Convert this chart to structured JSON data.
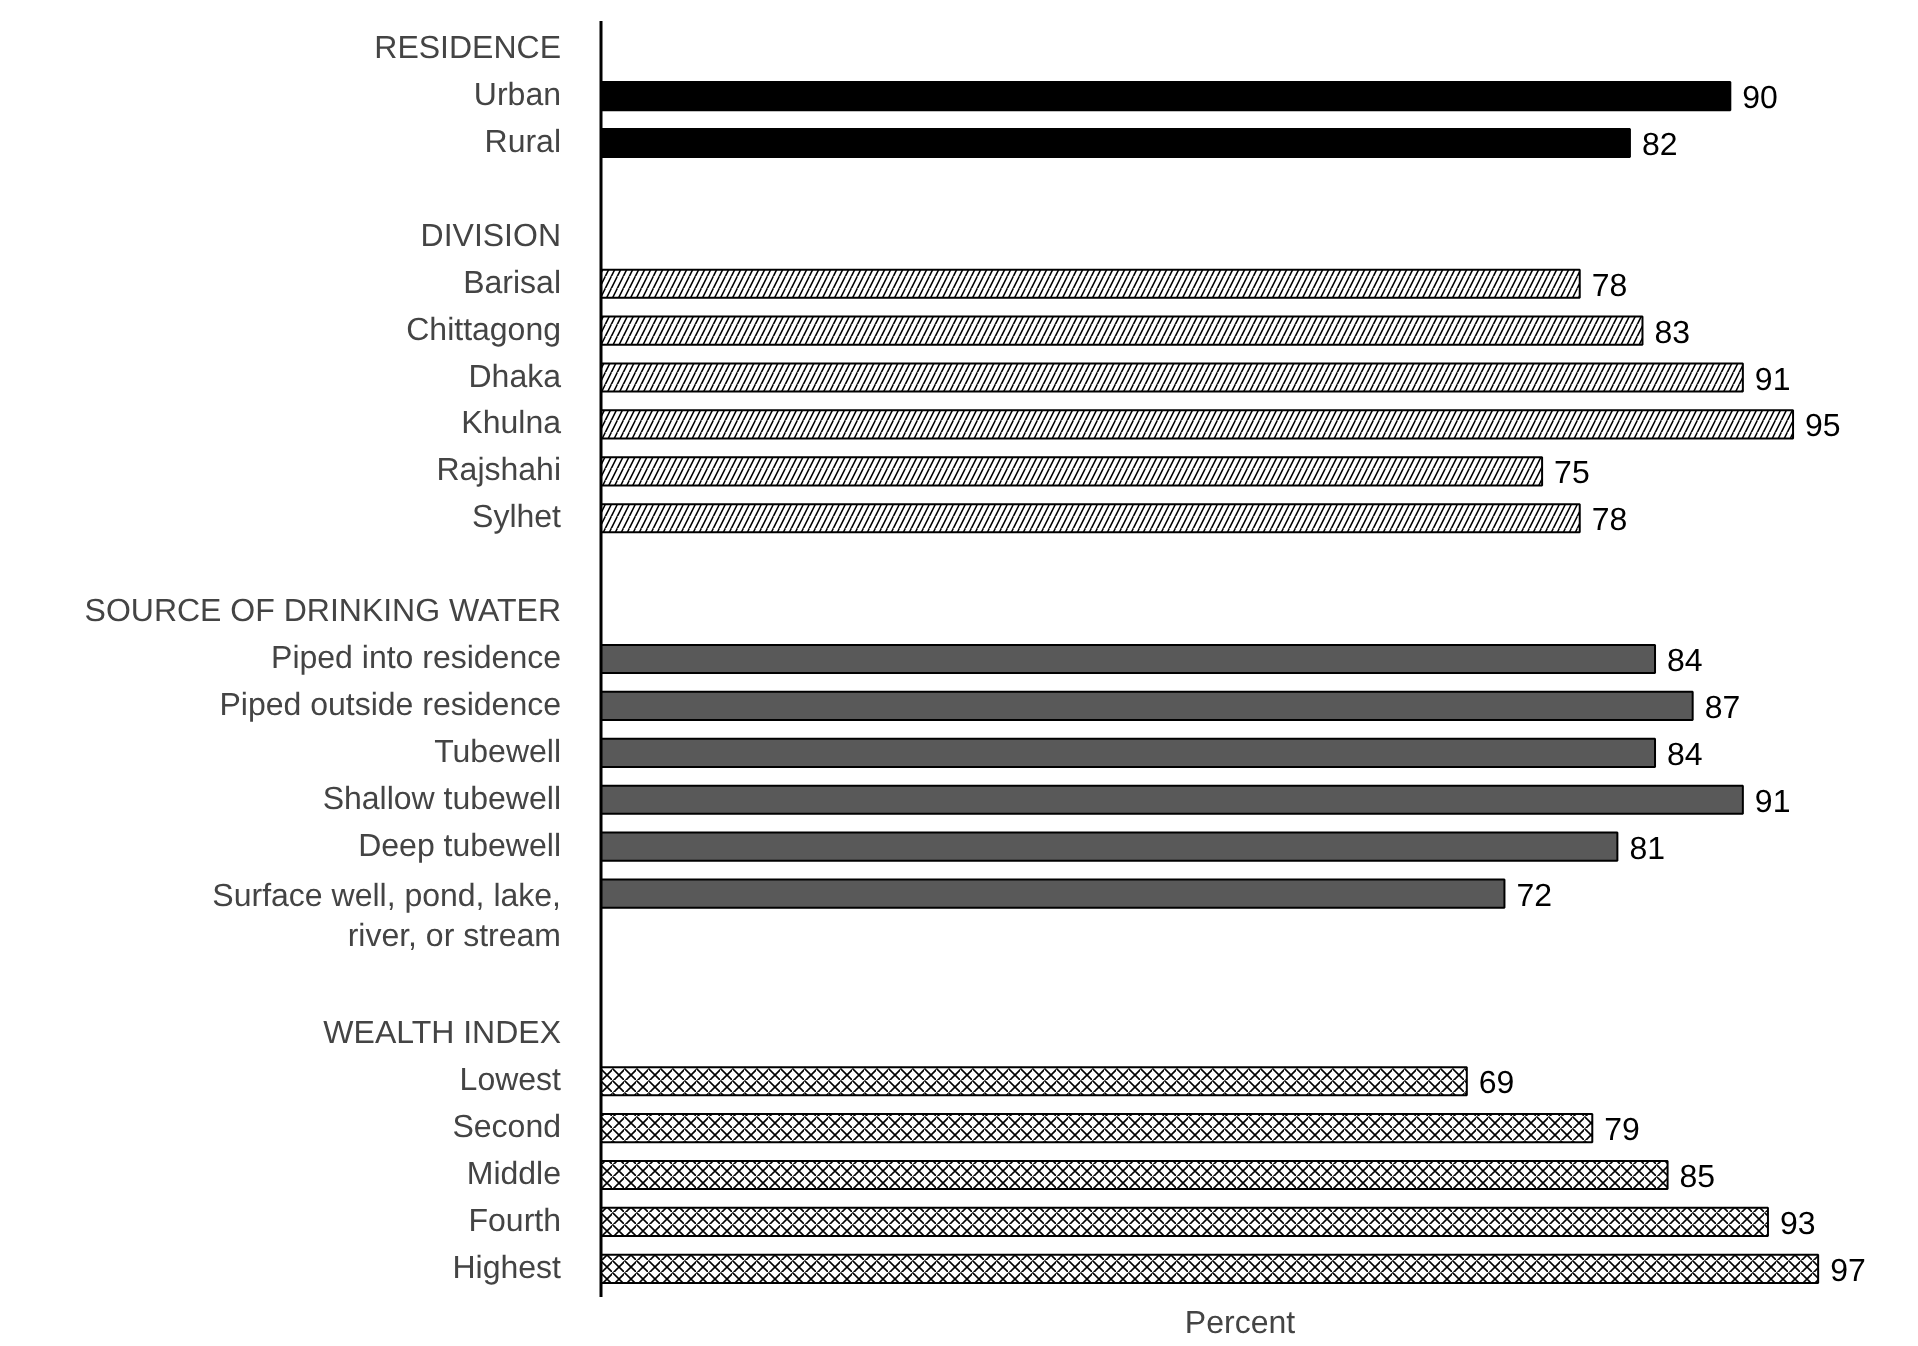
{
  "chart_data": {
    "type": "bar",
    "orientation": "horizontal",
    "xlabel": "Percent",
    "categories": [
      "RESIDENCE",
      "Urban",
      "Rural",
      null,
      "DIVISION",
      "Barisal",
      "Chittagong",
      "Dhaka",
      "Khulna",
      "Rajshahi",
      "Sylhet",
      null,
      "SOURCE OF DRINKING WATER",
      "Piped into residence",
      "Piped outside residence",
      "Tubewell",
      "Shallow tubewell",
      "Deep tubewell",
      "Surface well, pond, lake,\nriver, or stream",
      null,
      null,
      "WEALTH INDEX",
      "Lowest",
      "Second",
      "Middle",
      "Fourth",
      "Highest"
    ],
    "series": [
      {
        "color": "#000000",
        "values": [
          null,
          90,
          82,
          null,
          null,
          null,
          null,
          null,
          null,
          null,
          null,
          null,
          null,
          null,
          null,
          null,
          null,
          null,
          null,
          null,
          null,
          null,
          null,
          null,
          null,
          null,
          null
        ]
      },
      {
        "color": "#ffffff",
        "values": [
          null,
          null,
          null,
          null,
          null,
          78,
          83,
          91,
          95,
          75,
          78,
          null,
          null,
          null,
          null,
          null,
          null,
          null,
          null,
          null,
          null,
          null,
          null,
          null,
          null,
          null,
          null
        ]
      },
      {
        "color": "#595959",
        "values": [
          null,
          null,
          null,
          null,
          null,
          null,
          null,
          null,
          null,
          null,
          null,
          null,
          null,
          84,
          87,
          84,
          91,
          81,
          72,
          null,
          null,
          null,
          null,
          null,
          null,
          null,
          null
        ]
      },
      {
        "color": "#ffffff",
        "values": [
          null,
          null,
          null,
          null,
          null,
          null,
          null,
          null,
          null,
          null,
          null,
          null,
          null,
          null,
          null,
          null,
          null,
          null,
          null,
          null,
          null,
          null,
          69,
          79,
          85,
          93,
          97
        ]
      }
    ],
    "data_labels": true
  }
}
